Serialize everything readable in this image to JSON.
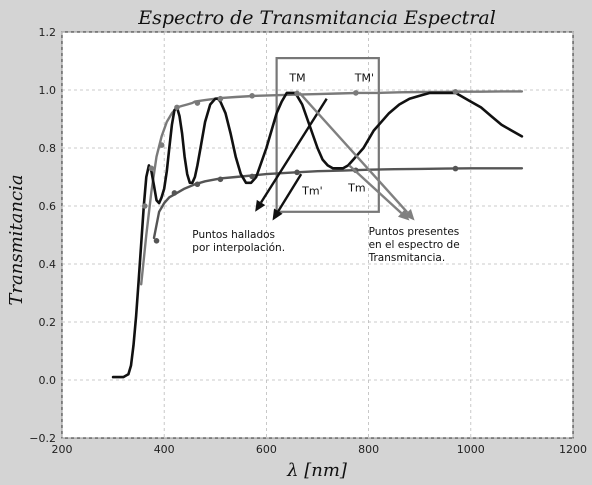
{
  "chart_data": {
    "type": "line",
    "title": "Espectro de Transmitancia Espectral",
    "xlabel": "λ [nm]",
    "ylabel": "Transmitancia",
    "xlim": [
      200,
      1200
    ],
    "ylim": [
      -0.2,
      1.2
    ],
    "xticks": [
      "200",
      "400",
      "600",
      "800",
      "1000",
      "1200"
    ],
    "yticks": [
      "−0.2",
      "0.0",
      "0.2",
      "0.4",
      "0.6",
      "0.8",
      "1.0",
      "1.2"
    ],
    "grid": true,
    "series": [
      {
        "color": "#111111",
        "x": [
          300,
          310,
          320,
          330,
          335,
          340,
          345,
          350,
          355,
          360,
          365,
          370,
          375,
          380,
          385,
          390,
          395,
          400,
          405,
          410,
          415,
          420,
          425,
          430,
          435,
          440,
          445,
          450,
          455,
          460,
          465,
          470,
          480,
          490,
          500,
          505,
          510,
          520,
          530,
          540,
          550,
          560,
          570,
          580,
          590,
          600,
          610,
          620,
          630,
          640,
          650,
          655,
          660,
          670,
          680,
          690,
          700,
          710,
          720,
          730,
          740,
          750,
          760,
          770,
          780,
          790,
          800,
          810,
          820,
          840,
          860,
          880,
          900,
          920,
          940,
          960,
          970,
          980,
          1000,
          1020,
          1040,
          1060,
          1080,
          1100
        ],
        "y": [
          0.01,
          0.01,
          0.01,
          0.02,
          0.05,
          0.12,
          0.22,
          0.34,
          0.47,
          0.6,
          0.7,
          0.74,
          0.72,
          0.67,
          0.62,
          0.61,
          0.63,
          0.66,
          0.72,
          0.8,
          0.88,
          0.93,
          0.94,
          0.91,
          0.85,
          0.77,
          0.71,
          0.68,
          0.68,
          0.7,
          0.74,
          0.79,
          0.89,
          0.95,
          0.97,
          0.97,
          0.96,
          0.92,
          0.85,
          0.77,
          0.71,
          0.68,
          0.68,
          0.7,
          0.75,
          0.8,
          0.86,
          0.92,
          0.96,
          0.99,
          0.99,
          0.99,
          0.98,
          0.95,
          0.9,
          0.85,
          0.8,
          0.76,
          0.74,
          0.73,
          0.73,
          0.73,
          0.74,
          0.76,
          0.78,
          0.8,
          0.83,
          0.86,
          0.88,
          0.92,
          0.95,
          0.97,
          0.98,
          0.99,
          0.99,
          0.99,
          0.99,
          0.98,
          0.96,
          0.94,
          0.91,
          0.88,
          0.86,
          0.84
        ]
      },
      {
        "color": "#7a7a7a",
        "x": [
          355,
          365,
          375,
          385,
          395,
          405,
          415,
          425,
          435,
          445,
          455,
          460,
          480,
          510,
          540,
          580,
          620,
          660,
          700,
          740,
          780,
          820,
          860,
          900,
          940,
          980,
          1020,
          1060,
          1100
        ],
        "y": [
          0.33,
          0.5,
          0.65,
          0.77,
          0.84,
          0.89,
          0.92,
          0.94,
          0.945,
          0.95,
          0.955,
          0.96,
          0.965,
          0.972,
          0.976,
          0.98,
          0.982,
          0.984,
          0.986,
          0.988,
          0.99,
          0.99,
          0.992,
          0.993,
          0.993,
          0.994,
          0.994,
          0.995,
          0.995
        ]
      },
      {
        "color": "#555555",
        "x": [
          380,
          390,
          400,
          410,
          420,
          440,
          460,
          480,
          510,
          540,
          570,
          600,
          650,
          700,
          750,
          800,
          850,
          900,
          950,
          1000,
          1050,
          1100
        ],
        "y": [
          0.49,
          0.58,
          0.61,
          0.63,
          0.64,
          0.66,
          0.675,
          0.685,
          0.695,
          0.7,
          0.705,
          0.71,
          0.715,
          0.72,
          0.722,
          0.725,
          0.727,
          0.728,
          0.729,
          0.73,
          0.73,
          0.73
        ]
      }
    ],
    "markers": [
      {
        "x": 385,
        "y": 0.48,
        "color": "#555555"
      },
      {
        "x": 420,
        "y": 0.645,
        "color": "#555555"
      },
      {
        "x": 465,
        "y": 0.675,
        "color": "#555555"
      },
      {
        "x": 510,
        "y": 0.692,
        "color": "#555555"
      },
      {
        "x": 572,
        "y": 0.702,
        "color": "#555555"
      },
      {
        "x": 660,
        "y": 0.716,
        "color": "#555555"
      },
      {
        "x": 775,
        "y": 0.723,
        "color": "#555555"
      },
      {
        "x": 970,
        "y": 0.729,
        "color": "#555555"
      },
      {
        "x": 362,
        "y": 0.6,
        "color": "#7a7a7a"
      },
      {
        "x": 375,
        "y": 0.73,
        "color": "#7a7a7a"
      },
      {
        "x": 395,
        "y": 0.81,
        "color": "#7a7a7a"
      },
      {
        "x": 425,
        "y": 0.94,
        "color": "#7a7a7a"
      },
      {
        "x": 465,
        "y": 0.955,
        "color": "#7a7a7a"
      },
      {
        "x": 510,
        "y": 0.97,
        "color": "#7a7a7a"
      },
      {
        "x": 572,
        "y": 0.98,
        "color": "#7a7a7a"
      },
      {
        "x": 660,
        "y": 0.988,
        "color": "#7a7a7a"
      },
      {
        "x": 775,
        "y": 0.99,
        "color": "#7a7a7a"
      },
      {
        "x": 970,
        "y": 0.994,
        "color": "#7a7a7a"
      }
    ],
    "highlight_box": {
      "x0": 620,
      "x1": 820,
      "y0": 0.58,
      "y1": 1.11
    },
    "point_labels": [
      {
        "text": "TM",
        "x": 645,
        "y": 1.03
      },
      {
        "text": "TM'",
        "x": 773,
        "y": 1.03
      },
      {
        "text": "Tm'",
        "x": 670,
        "y": 0.64
      },
      {
        "text": "Tm",
        "x": 760,
        "y": 0.65
      }
    ],
    "annotations": [
      {
        "lines": [
          "Puntos hallados",
          "por interpolación."
        ],
        "x": 455,
        "y": 0.49
      },
      {
        "lines": [
          "Puntos presentes",
          "en el espectro de",
          "Transmitancia."
        ],
        "x": 800,
        "y": 0.5
      }
    ],
    "arrows": [
      {
        "from": [
          718,
          0.97
        ],
        "to": [
          578,
          0.58
        ],
        "color": "#111111"
      },
      {
        "from": [
          668,
          0.71
        ],
        "to": [
          612,
          0.55
        ],
        "color": "#111111"
      },
      {
        "from": [
          665,
          0.99
        ],
        "to": [
          890,
          0.55
        ],
        "color": "#808080"
      },
      {
        "from": [
          762,
          0.74
        ],
        "to": [
          880,
          0.55
        ],
        "color": "#808080"
      }
    ]
  }
}
